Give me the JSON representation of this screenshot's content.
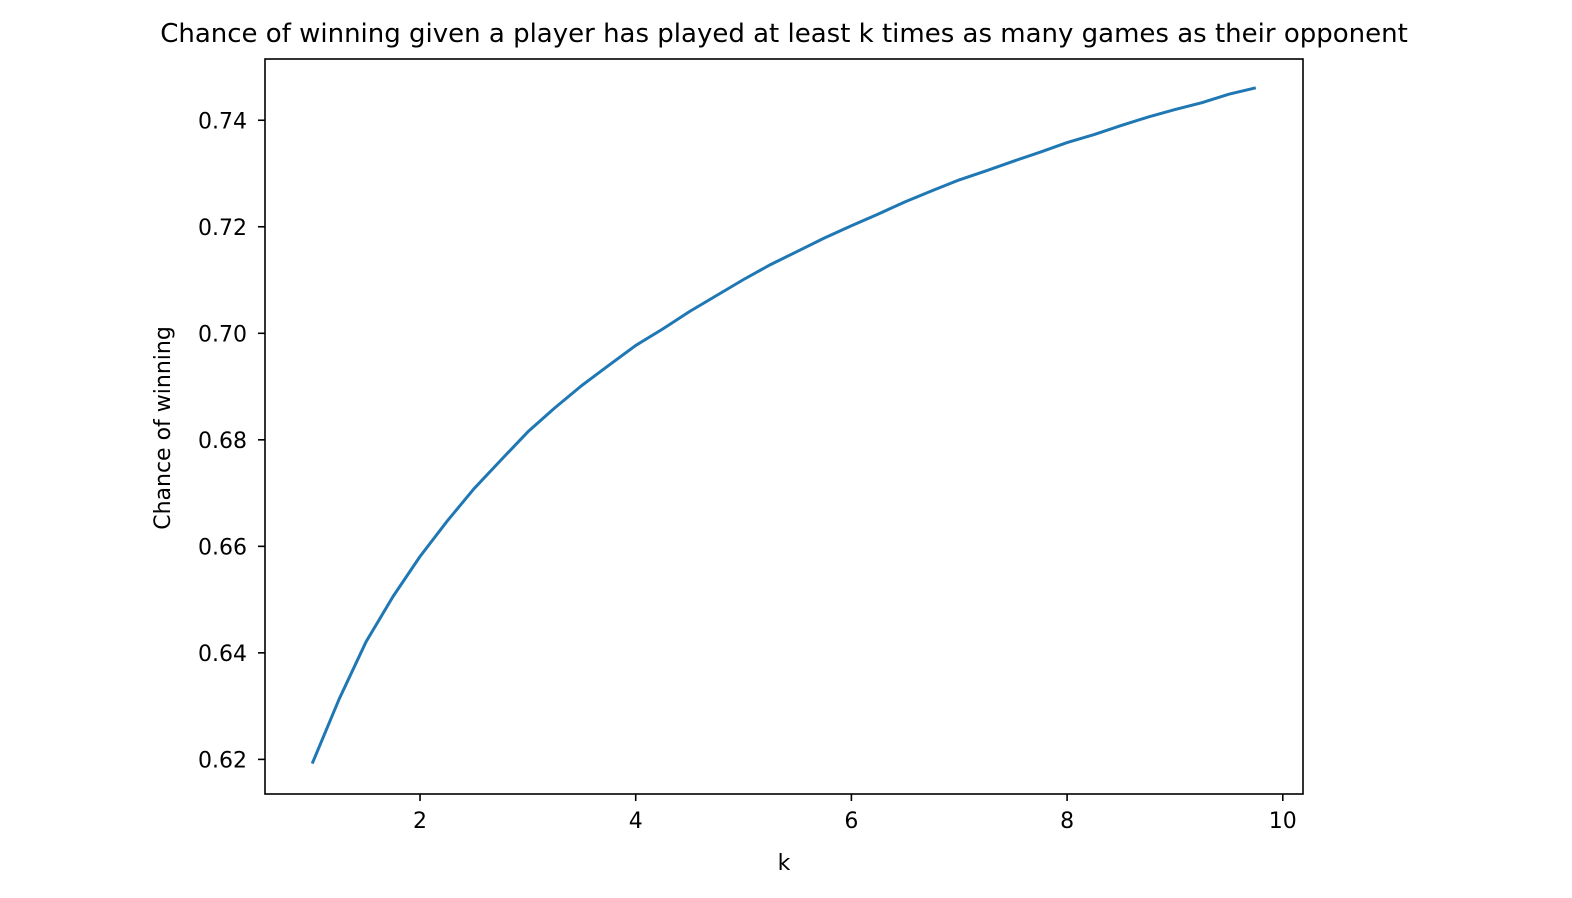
{
  "chart_data": {
    "type": "line",
    "title": "Chance of winning given a player has played at least k times as many games as their opponent",
    "xlabel": "k",
    "ylabel": "Chance of winning",
    "xlim": [
      0.5625,
      10.1875
    ],
    "ylim": [
      0.6135,
      0.7515
    ],
    "xticks": [
      2,
      4,
      6,
      8,
      10
    ],
    "yticks": [
      0.62,
      0.64,
      0.66,
      0.68,
      0.7,
      0.72,
      0.74
    ],
    "xtick_labels": [
      "2",
      "4",
      "6",
      "8",
      "10"
    ],
    "ytick_labels": [
      "0.62",
      "0.64",
      "0.66",
      "0.68",
      "0.70",
      "0.72",
      "0.74"
    ],
    "grid": false,
    "legend": "none",
    "colors": {
      "line": "#1f77b4",
      "axes": "#000000"
    },
    "series": [
      {
        "x": [
          1.0,
          1.25,
          1.5,
          1.75,
          2.0,
          2.25,
          2.5,
          2.75,
          3.0,
          3.25,
          3.5,
          3.75,
          4.0,
          4.25,
          4.5,
          4.75,
          5.0,
          5.25,
          5.5,
          5.75,
          6.0,
          6.25,
          6.5,
          6.75,
          7.0,
          7.25,
          7.5,
          7.75,
          8.0,
          8.25,
          8.5,
          8.75,
          9.0,
          9.25,
          9.5,
          9.75
        ],
        "y": [
          0.6192,
          0.6313,
          0.6421,
          0.6506,
          0.6581,
          0.6647,
          0.6708,
          0.6762,
          0.6815,
          0.686,
          0.6902,
          0.694,
          0.6977,
          0.7008,
          0.7041,
          0.7071,
          0.7101,
          0.7129,
          0.7154,
          0.7179,
          0.7202,
          0.7224,
          0.7247,
          0.7268,
          0.7288,
          0.7305,
          0.7323,
          0.734,
          0.7358,
          0.7373,
          0.739,
          0.7406,
          0.742,
          0.7433,
          0.7449,
          0.7461
        ]
      }
    ]
  }
}
